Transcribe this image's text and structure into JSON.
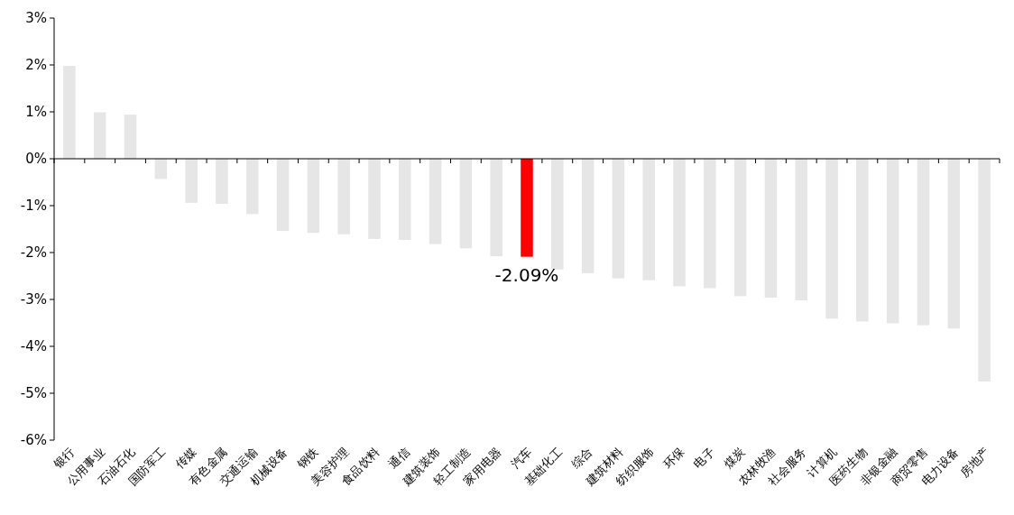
{
  "chart_data": {
    "type": "bar",
    "categories": [
      "银行",
      "公用事业",
      "石油石化",
      "国防军工",
      "传媒",
      "有色金属",
      "交通运输",
      "机械设备",
      "钢铁",
      "美容护理",
      "食品饮料",
      "通信",
      "建筑装饰",
      "轻工制造",
      "家用电器",
      "汽车",
      "基础化工",
      "综合",
      "建筑材料",
      "纺织服饰",
      "环保",
      "电子",
      "煤炭",
      "农林牧渔",
      "社会服务",
      "计算机",
      "医药生物",
      "非银金融",
      "商贸零售",
      "电力设备",
      "房地产"
    ],
    "values": [
      1.98,
      0.99,
      0.94,
      -0.43,
      -0.94,
      -0.96,
      -1.18,
      -1.54,
      -1.58,
      -1.61,
      -1.71,
      -1.73,
      -1.82,
      -1.91,
      -2.08,
      -2.09,
      -2.36,
      -2.44,
      -2.55,
      -2.59,
      -2.72,
      -2.76,
      -2.93,
      -2.96,
      -3.02,
      -3.41,
      -3.47,
      -3.51,
      -3.55,
      -3.62,
      -4.75
    ],
    "colors": [
      "#e6e6e6",
      "#e6e6e6",
      "#e6e6e6",
      "#e6e6e6",
      "#e6e6e6",
      "#e6e6e6",
      "#e6e6e6",
      "#e6e6e6",
      "#e6e6e6",
      "#e6e6e6",
      "#e6e6e6",
      "#e6e6e6",
      "#e6e6e6",
      "#e6e6e6",
      "#e6e6e6",
      "#ff0000",
      "#e6e6e6",
      "#e6e6e6",
      "#e6e6e6",
      "#e6e6e6",
      "#e6e6e6",
      "#e6e6e6",
      "#e6e6e6",
      "#e6e6e6",
      "#e6e6e6",
      "#e6e6e6",
      "#e6e6e6",
      "#e6e6e6",
      "#e6e6e6",
      "#e6e6e6",
      "#e6e6e6"
    ],
    "value_labels": [
      null,
      null,
      null,
      null,
      null,
      null,
      null,
      null,
      null,
      null,
      null,
      null,
      null,
      null,
      null,
      "-2.09%",
      null,
      null,
      null,
      null,
      null,
      null,
      null,
      null,
      null,
      null,
      null,
      null,
      null,
      null,
      null
    ],
    "ylim": [
      -6,
      3
    ],
    "yticks": [
      {
        "value": 3,
        "label": "3%"
      },
      {
        "value": 2,
        "label": "2%"
      },
      {
        "value": 1,
        "label": "1%"
      },
      {
        "value": 0,
        "label": "0%"
      },
      {
        "value": -1,
        "label": "-1%"
      },
      {
        "value": -2,
        "label": "-2%"
      },
      {
        "value": -3,
        "label": "-3%"
      },
      {
        "value": -4,
        "label": "-4%"
      },
      {
        "value": -5,
        "label": "-5%"
      },
      {
        "value": -6,
        "label": "-6%"
      }
    ],
    "orientation": "vertical"
  }
}
